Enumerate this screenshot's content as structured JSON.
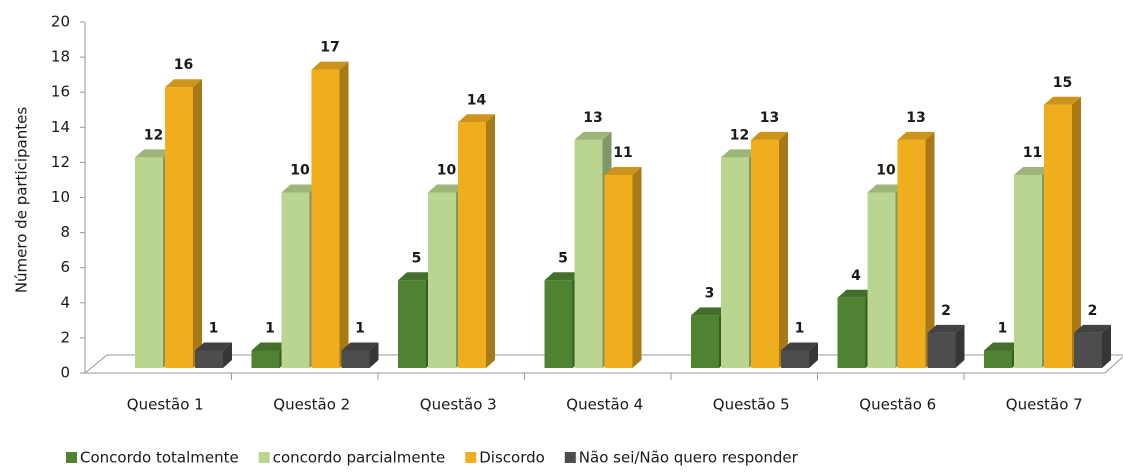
{
  "chart_data": {
    "type": "bar3d",
    "y_label": "Número de participantes",
    "categories": [
      "Questão 1",
      "Questão 2",
      "Questão 3",
      "Questão 4",
      "Questão 5",
      "Questão 6",
      "Questão 7"
    ],
    "series": [
      {
        "name": "Concordo totalmente",
        "color": "#4f8231",
        "values": [
          null,
          1,
          5,
          5,
          3,
          4,
          1
        ]
      },
      {
        "name": "concordo parcialmente",
        "color": "#bad58f",
        "values": [
          12,
          10,
          10,
          13,
          12,
          10,
          11
        ]
      },
      {
        "name": "Discordo",
        "color": "#f0ae1e",
        "values": [
          16,
          17,
          14,
          11,
          13,
          13,
          15
        ]
      },
      {
        "name": "Não sei/Não quero responder",
        "color": "#4d4d4d",
        "values": [
          1,
          1,
          null,
          null,
          1,
          2,
          2
        ]
      }
    ],
    "ylim": [
      0,
      20
    ],
    "yticks": [
      0,
      2,
      4,
      6,
      8,
      10,
      12,
      14,
      16,
      18,
      20
    ]
  }
}
